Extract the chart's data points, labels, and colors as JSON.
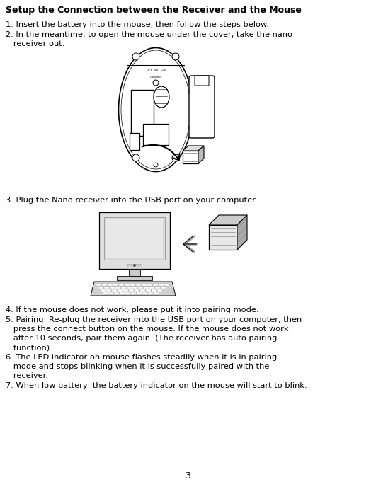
{
  "bg_color": "#ffffff",
  "title": "Setup the Connection between the Receiver and the Mouse",
  "line1": "1. Insert the battery into the mouse, then follow the steps below.",
  "line2a": "2. In the meantime, to open the mouse under the cover, take the nano",
  "line2b": "   receiver out.",
  "line3": "3. Plug the Nano receiver into the USB port on your computer.",
  "line4": "4. If the mouse does not work, please put it into pairing mode.",
  "line5a": "5. Pairing: Re-plug the receiver into the USB port on your computer, then",
  "line5b": "   press the connect button on the mouse. If the mouse does not work",
  "line5c": "   after 10 seconds, pair them again. (The receiver has auto pairing",
  "line5d": "   function).",
  "line6a": "6. The LED indicator on mouse flashes steadily when it is in pairing",
  "line6b": "   mode and stops blinking when it is successfully paired with the",
  "line6c": "   receiver.",
  "line7": "7. When low battery, the battery indicator on the mouse will start to blink.",
  "page_num": "3",
  "text_color": "#000000",
  "font_size_title": 9.0,
  "font_size_body": 8.2
}
